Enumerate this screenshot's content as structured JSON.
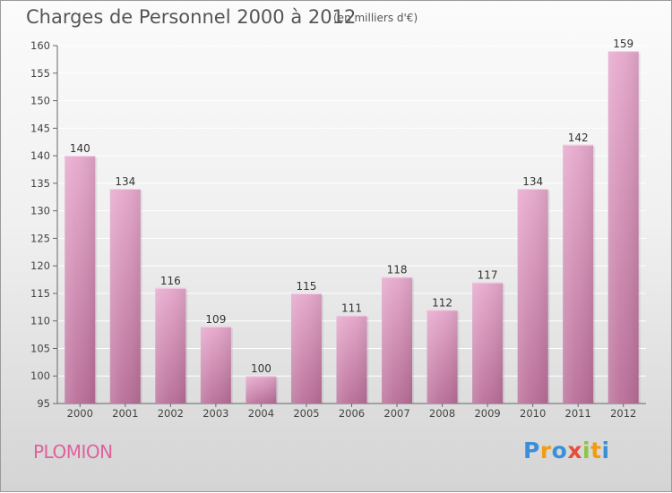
{
  "chart_data": {
    "type": "bar",
    "title": "Charges de Personnel 2000 à 2012",
    "subtitle": "(en milliers d'€)",
    "categories": [
      "2000",
      "2001",
      "2002",
      "2003",
      "2004",
      "2005",
      "2006",
      "2007",
      "2008",
      "2009",
      "2010",
      "2011",
      "2012"
    ],
    "values": [
      140,
      134,
      116,
      109,
      100,
      115,
      111,
      118,
      112,
      117,
      134,
      142,
      159
    ],
    "ylim": [
      95,
      160
    ],
    "yticks": [
      95,
      100,
      105,
      110,
      115,
      120,
      125,
      130,
      135,
      140,
      145,
      150,
      155,
      160
    ],
    "xlabel": "",
    "ylabel": "",
    "grid": true,
    "bar_color_top": "#e6a8cc",
    "bar_color_bottom": "#b96e98"
  },
  "place_name": "PLOMION",
  "logo": {
    "letters": [
      "P",
      "r",
      "o",
      "x",
      "i",
      "t",
      "i"
    ],
    "colors": [
      "#3a8fd8",
      "#f39c12",
      "#3a8fd8",
      "#e74c3c",
      "#8cc63f",
      "#f39c12",
      "#3a8fd8"
    ]
  }
}
